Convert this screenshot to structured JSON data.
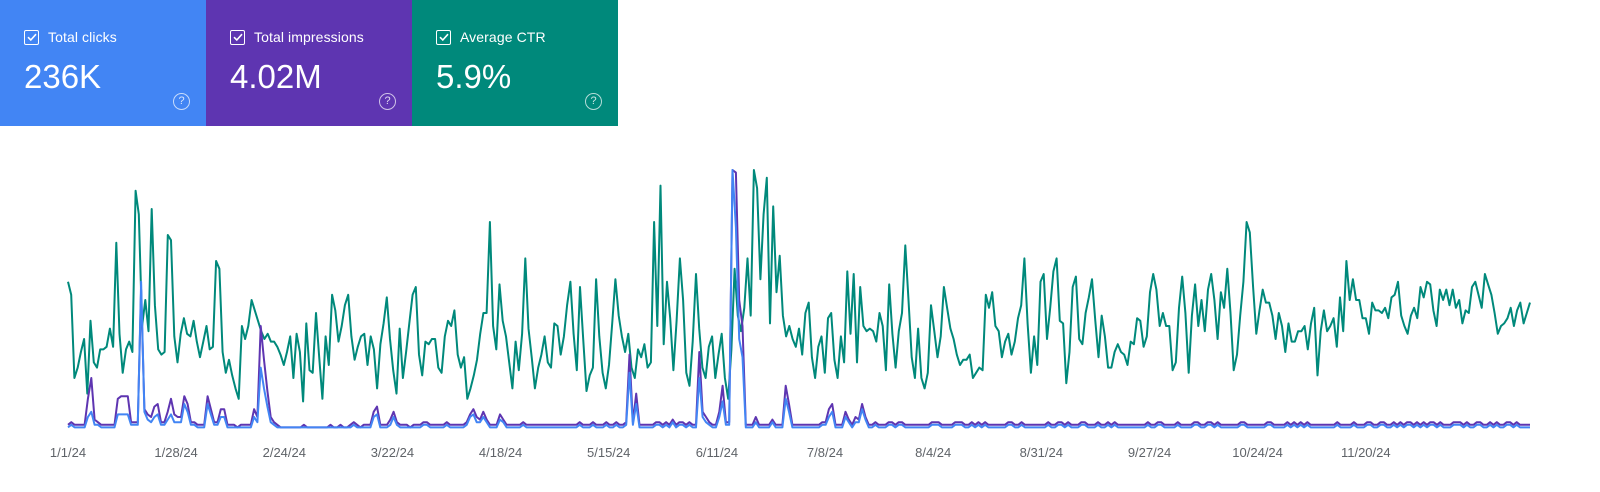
{
  "metrics": [
    {
      "label": "Total clicks",
      "value": "236K",
      "color": "#4285f4",
      "icon": "checkbox-checked-icon"
    },
    {
      "label": "Total impressions",
      "value": "4.02M",
      "color": "#5e35b1",
      "icon": "checkbox-checked-icon"
    },
    {
      "label": "Average CTR",
      "value": "5.9%",
      "color": "#00897b",
      "icon": "checkbox-checked-icon"
    }
  ],
  "help_icon": "help-circle-icon",
  "chart_data": {
    "type": "line",
    "x_range": [
      "1/1/24",
      "12/30/24"
    ],
    "x_tick_labels": [
      "1/1/24",
      "1/28/24",
      "2/24/24",
      "3/22/24",
      "4/18/24",
      "5/15/24",
      "6/11/24",
      "7/8/24",
      "8/4/24",
      "8/31/24",
      "9/27/24",
      "10/24/24",
      "11/20/24"
    ],
    "grid": false,
    "legend": "metric cards at top-left",
    "note": "Daily series; y-axes hidden, values shown as percent of each series' visible peak",
    "series": [
      {
        "color": "#00897b",
        "values": [
          57,
          52,
          20,
          24,
          30,
          35,
          14,
          42,
          26,
          24,
          31,
          31,
          32,
          39,
          32,
          72,
          37,
          22,
          31,
          34,
          30,
          92,
          83,
          40,
          50,
          38,
          85,
          48,
          31,
          29,
          30,
          75,
          73,
          36,
          26,
          37,
          43,
          37,
          36,
          42,
          34,
          28,
          34,
          40,
          31,
          32,
          65,
          62,
          30,
          22,
          27,
          21,
          16,
          12,
          40,
          35,
          40,
          50,
          46,
          42,
          38,
          35,
          37,
          34,
          34,
          32,
          29,
          25,
          30,
          36,
          20,
          37,
          30,
          11,
          41,
          23,
          22,
          45,
          28,
          12,
          36,
          25,
          52,
          46,
          34,
          40,
          48,
          52,
          36,
          27,
          32,
          36,
          37,
          25,
          36,
          31,
          16,
          33,
          41,
          51,
          35,
          23,
          14,
          39,
          20,
          30,
          41,
          52,
          55,
          29,
          21,
          34,
          33,
          35,
          35,
          24,
          22,
          36,
          42,
          40,
          46,
          29,
          24,
          28,
          12,
          16,
          21,
          27,
          37,
          45,
          45,
          80,
          40,
          31,
          56,
          42,
          36,
          26,
          16,
          34,
          23,
          37,
          66,
          39,
          28,
          16,
          24,
          29,
          36,
          26,
          24,
          41,
          40,
          29,
          36,
          48,
          57,
          37,
          23,
          55,
          35,
          15,
          21,
          24,
          58,
          36,
          22,
          16,
          25,
          41,
          58,
          44,
          36,
          30,
          37,
          24,
          20,
          31,
          28,
          33,
          24,
          26,
          80,
          40,
          94,
          33,
          57,
          43,
          23,
          42,
          66,
          50,
          22,
          17,
          34,
          60,
          39,
          24,
          20,
          32,
          36,
          20,
          29,
          37,
          20,
          12,
          31,
          62,
          44,
          38,
          47,
          66,
          44,
          100,
          93,
          58,
          83,
          97,
          41,
          86,
          53,
          67,
          44,
          36,
          40,
          35,
          32,
          39,
          29,
          45,
          49,
          28,
          20,
          32,
          36,
          22,
          43,
          45,
          27,
          20,
          36,
          26,
          61,
          37,
          60,
          26,
          55,
          40,
          38,
          39,
          38,
          34,
          45,
          40,
          23,
          56,
          37,
          24,
          38,
          45,
          71,
          50,
          28,
          20,
          39,
          20,
          16,
          22,
          48,
          38,
          28,
          36,
          55,
          47,
          39,
          35,
          29,
          25,
          27,
          27,
          29,
          20,
          22,
          24,
          23,
          52,
          47,
          53,
          40,
          38,
          28,
          34,
          37,
          29,
          34,
          43,
          48,
          66,
          41,
          22,
          36,
          25,
          57,
          60,
          35,
          47,
          61,
          66,
          42,
          41,
          18,
          30,
          55,
          59,
          35,
          33,
          45,
          51,
          58,
          42,
          28,
          44,
          36,
          24,
          24,
          30,
          33,
          30,
          29,
          25,
          34,
          33,
          43,
          42,
          32,
          36,
          53,
          60,
          54,
          40,
          45,
          40,
          40,
          23,
          26,
          47,
          59,
          45,
          22,
          44,
          56,
          40,
          50,
          38,
          54,
          60,
          50,
          35,
          53,
          47,
          62,
          45,
          23,
          29,
          44,
          57,
          80,
          76,
          55,
          37,
          46,
          54,
          49,
          49,
          44,
          35,
          45,
          40,
          30,
          41,
          34,
          34,
          38,
          38,
          40,
          31,
          41,
          47,
          21,
          38,
          46,
          38,
          40,
          43,
          32,
          51,
          38,
          65,
          50,
          58,
          50,
          50,
          43,
          43,
          37,
          49,
          46,
          46,
          45,
          47,
          43,
          51,
          52,
          57,
          44,
          40,
          37,
          44,
          47,
          43,
          55,
          51,
          57,
          56,
          46,
          40,
          54,
          50,
          54,
          48,
          54,
          47,
          50,
          41,
          46,
          45,
          55,
          57,
          52,
          47,
          60,
          56,
          52,
          45,
          37,
          40,
          41,
          43,
          47,
          40,
          46,
          49,
          41,
          45,
          49
        ]
      },
      {
        "color": "#5e35b1",
        "values": [
          2,
          3,
          2,
          2,
          2,
          2,
          12,
          20,
          4,
          3,
          2,
          2,
          2,
          2,
          2,
          12,
          13,
          13,
          13,
          3,
          3,
          3,
          54,
          8,
          6,
          5,
          9,
          10,
          3,
          3,
          7,
          12,
          6,
          5,
          5,
          13,
          10,
          3,
          3,
          2,
          2,
          2,
          13,
          8,
          3,
          3,
          8,
          8,
          2,
          2,
          2,
          1,
          2,
          2,
          2,
          2,
          8,
          5,
          40,
          27,
          15,
          5,
          3,
          2,
          1,
          1,
          1,
          1,
          1,
          1,
          1,
          2,
          1,
          1,
          1,
          1,
          1,
          1,
          1,
          2,
          1,
          1,
          2,
          1,
          1,
          2,
          3,
          2,
          1,
          2,
          2,
          2,
          7,
          9,
          2,
          2,
          2,
          4,
          7,
          3,
          2,
          2,
          2,
          1,
          2,
          2,
          2,
          3,
          3,
          2,
          2,
          2,
          2,
          2,
          3,
          2,
          2,
          2,
          2,
          2,
          3,
          6,
          8,
          5,
          4,
          7,
          4,
          2,
          2,
          2,
          6,
          4,
          2,
          2,
          2,
          2,
          2,
          3,
          2,
          2,
          2,
          2,
          2,
          2,
          2,
          2,
          2,
          2,
          2,
          2,
          2,
          2,
          2,
          2,
          3,
          2,
          2,
          2,
          3,
          2,
          2,
          2,
          3,
          2,
          2,
          3,
          2,
          2,
          3,
          29,
          3,
          14,
          2,
          2,
          2,
          2,
          2,
          3,
          3,
          2,
          3,
          2,
          4,
          2,
          3,
          3,
          2,
          3,
          2,
          2,
          30,
          7,
          5,
          3,
          2,
          2,
          7,
          17,
          3,
          3,
          100,
          99,
          50,
          40,
          2,
          2,
          2,
          5,
          2,
          2,
          2,
          2,
          4,
          2,
          2,
          2,
          17,
          10,
          2,
          2,
          2,
          2,
          2,
          2,
          2,
          2,
          2,
          3,
          3,
          8,
          10,
          2,
          2,
          2,
          7,
          4,
          2,
          5,
          4,
          10,
          5,
          2,
          2,
          3,
          2,
          2,
          2,
          3,
          3,
          2,
          3,
          3,
          2,
          2,
          2,
          2,
          2,
          2,
          2,
          2,
          3,
          3,
          3,
          2,
          2,
          2,
          2,
          3,
          3,
          3,
          2,
          2,
          3,
          2,
          3,
          2,
          3,
          2,
          2,
          2,
          2,
          2,
          2,
          3,
          3,
          2,
          2,
          3,
          2,
          2,
          2,
          2,
          2,
          2,
          2,
          3,
          2,
          2,
          3,
          3,
          2,
          3,
          2,
          2,
          2,
          3,
          3,
          2,
          2,
          2,
          3,
          2,
          2,
          3,
          2,
          3,
          2,
          2,
          2,
          2,
          2,
          2,
          2,
          2,
          2,
          3,
          2,
          2,
          3,
          3,
          2,
          2,
          2,
          2,
          3,
          2,
          2,
          2,
          2,
          3,
          3,
          2,
          2,
          3,
          3,
          2,
          3,
          2,
          2,
          2,
          2,
          2,
          2,
          3,
          3,
          2,
          2,
          2,
          2,
          2,
          2,
          3,
          3,
          2,
          2,
          2,
          2,
          3,
          2,
          3,
          2,
          3,
          2,
          3,
          2,
          2,
          2,
          2,
          2,
          2,
          2,
          2,
          3,
          2,
          2,
          2,
          2,
          3,
          2,
          2,
          2,
          3,
          3,
          2,
          2,
          3,
          3,
          2,
          2,
          3,
          2,
          3,
          2,
          3,
          3,
          2,
          3,
          2,
          3,
          2,
          3,
          3,
          2,
          3,
          2,
          2,
          2,
          3,
          3,
          3,
          2,
          3,
          2,
          2,
          3,
          3,
          2,
          2,
          3,
          2,
          3,
          2,
          2,
          3,
          3,
          2,
          3,
          2,
          2,
          2,
          2
        ]
      },
      {
        "color": "#4285f4",
        "values": [
          1,
          2,
          1,
          1,
          1,
          1,
          5,
          7,
          2,
          2,
          1,
          1,
          1,
          1,
          1,
          6,
          6,
          6,
          6,
          2,
          2,
          2,
          57,
          7,
          4,
          3,
          5,
          6,
          2,
          2,
          4,
          6,
          3,
          3,
          3,
          10,
          7,
          2,
          2,
          1,
          1,
          1,
          10,
          6,
          2,
          2,
          5,
          5,
          1,
          1,
          1,
          1,
          1,
          1,
          1,
          1,
          5,
          3,
          24,
          16,
          9,
          3,
          2,
          1,
          1,
          1,
          1,
          1,
          1,
          1,
          1,
          1,
          1,
          1,
          1,
          1,
          1,
          1,
          1,
          1,
          1,
          1,
          1,
          1,
          1,
          1,
          2,
          1,
          1,
          1,
          1,
          1,
          5,
          6,
          1,
          1,
          1,
          2,
          5,
          2,
          1,
          1,
          1,
          1,
          1,
          1,
          1,
          2,
          2,
          1,
          1,
          1,
          1,
          1,
          2,
          1,
          1,
          1,
          1,
          1,
          2,
          5,
          6,
          3,
          3,
          5,
          3,
          1,
          1,
          1,
          4,
          3,
          1,
          1,
          1,
          1,
          1,
          2,
          1,
          1,
          1,
          1,
          1,
          1,
          1,
          1,
          1,
          1,
          1,
          1,
          1,
          1,
          1,
          1,
          2,
          1,
          1,
          1,
          2,
          1,
          1,
          1,
          2,
          1,
          1,
          2,
          1,
          1,
          2,
          22,
          2,
          10,
          1,
          1,
          1,
          1,
          1,
          2,
          2,
          1,
          2,
          1,
          3,
          1,
          2,
          2,
          1,
          2,
          1,
          1,
          20,
          5,
          3,
          2,
          1,
          1,
          5,
          11,
          2,
          2,
          100,
          78,
          35,
          28,
          1,
          1,
          1,
          3,
          1,
          1,
          1,
          1,
          3,
          1,
          1,
          1,
          12,
          7,
          1,
          1,
          1,
          1,
          1,
          1,
          1,
          1,
          1,
          2,
          2,
          5,
          7,
          1,
          1,
          1,
          5,
          3,
          1,
          3,
          3,
          8,
          4,
          1,
          1,
          2,
          1,
          1,
          1,
          2,
          2,
          1,
          2,
          2,
          1,
          1,
          1,
          1,
          1,
          1,
          1,
          1,
          2,
          2,
          2,
          1,
          1,
          1,
          1,
          2,
          2,
          2,
          1,
          1,
          2,
          1,
          2,
          1,
          2,
          1,
          1,
          1,
          1,
          1,
          1,
          2,
          2,
          1,
          1,
          2,
          1,
          1,
          1,
          1,
          1,
          1,
          1,
          2,
          1,
          1,
          2,
          2,
          1,
          2,
          1,
          1,
          1,
          2,
          2,
          1,
          1,
          1,
          2,
          1,
          1,
          2,
          1,
          2,
          1,
          1,
          1,
          1,
          1,
          1,
          1,
          1,
          1,
          2,
          1,
          1,
          2,
          2,
          1,
          1,
          1,
          1,
          2,
          1,
          1,
          1,
          1,
          2,
          2,
          1,
          1,
          2,
          2,
          1,
          2,
          1,
          1,
          1,
          1,
          1,
          1,
          2,
          2,
          1,
          1,
          1,
          1,
          1,
          1,
          2,
          2,
          1,
          1,
          1,
          1,
          2,
          1,
          2,
          1,
          2,
          1,
          2,
          1,
          1,
          1,
          1,
          1,
          1,
          1,
          1,
          2,
          1,
          1,
          1,
          1,
          2,
          1,
          1,
          1,
          2,
          2,
          1,
          1,
          2,
          2,
          1,
          1,
          2,
          1,
          2,
          1,
          2,
          2,
          1,
          2,
          1,
          2,
          1,
          2,
          2,
          1,
          2,
          1,
          1,
          1,
          2,
          2,
          2,
          1,
          2,
          1,
          1,
          2,
          2,
          1,
          1,
          2,
          1,
          2,
          1,
          1,
          2,
          2,
          1,
          2,
          1,
          1,
          1,
          1
        ]
      }
    ]
  }
}
